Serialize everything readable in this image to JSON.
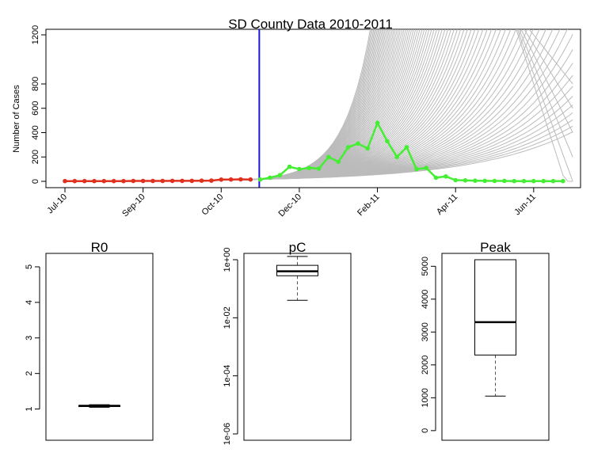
{
  "chart_data": [
    {
      "type": "line",
      "title": "SD County Data 2010-2011",
      "ylabel": "Number of Cases",
      "xlabel": "",
      "x_ticks": [
        "Jul-10",
        "Sep-10",
        "Oct-10",
        "Dec-10",
        "Feb-11",
        "Apr-11",
        "Jun-11"
      ],
      "y_ticks": [
        "0",
        "200",
        "400",
        "600",
        "800",
        "1200"
      ],
      "ylim": [
        0,
        1200
      ],
      "series": [
        {
          "color": "#e0301e",
          "values": [
            2,
            2,
            2,
            2,
            2,
            2,
            2,
            3,
            3,
            3,
            3,
            4,
            4,
            4,
            5,
            6,
            14,
            15,
            16,
            15
          ]
        },
        {
          "color": "#44ee33",
          "values": [
            15,
            30,
            50,
            120,
            100,
            110,
            105,
            200,
            160,
            280,
            310,
            270,
            480,
            330,
            200,
            280,
            100,
            110,
            30,
            40,
            10,
            8,
            5,
            4,
            3,
            3,
            2,
            2,
            2,
            2,
            2,
            2
          ]
        }
      ],
      "projection_curves": {
        "color": "#bbbbbb",
        "count": 80
      },
      "cutoff_line_color": "#1a1ad6"
    },
    {
      "type": "box",
      "title": "R0",
      "y_ticks": [
        "1",
        "2",
        "3",
        "4",
        "5"
      ],
      "ylim": [
        0.3,
        5.2
      ],
      "box": {
        "min": 1.05,
        "q1": 1.07,
        "median": 1.09,
        "q3": 1.1,
        "max": 1.12
      }
    },
    {
      "type": "box",
      "title": "pC",
      "scale": "log",
      "y_ticks": [
        "1e-06",
        "1e-04",
        "1e-02",
        "1e+00"
      ],
      "ylim": [
        1e-06,
        1
      ],
      "box": {
        "min": 0.04,
        "q1": 0.28,
        "median": 0.4,
        "q3": 0.64,
        "max": 1.3
      }
    },
    {
      "type": "box",
      "title": "Peak",
      "y_ticks": [
        "0",
        "1000",
        "2000",
        "3000",
        "4000",
        "5000"
      ],
      "ylim": [
        -100,
        5200
      ],
      "box": {
        "min": 1050,
        "q1": 2300,
        "median": 3300,
        "q3": 5200,
        "max": 5200
      }
    }
  ]
}
